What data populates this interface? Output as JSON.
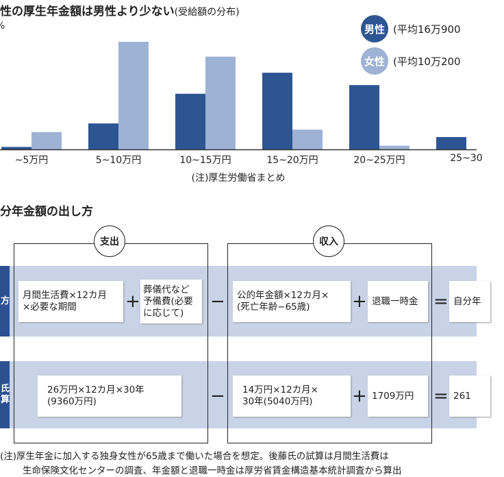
{
  "chart_data": {
    "type": "bar",
    "title": "性の厚生年金額は男性より少ない",
    "subtitle": "(受給額の分布)",
    "ylabel": "%",
    "categories": [
      "~5万円",
      "5~10万円",
      "10~15万円",
      "15~20万円",
      "20~25万円",
      "25~30"
    ],
    "series": [
      {
        "name": "男性",
        "note": "(平均16万900",
        "color": "#2d5592",
        "values": [
          1,
          10.5,
          22.5,
          31,
          26,
          5
        ]
      },
      {
        "name": "女性",
        "note": "(平均10万200",
        "color": "#9db2d4",
        "values": [
          7,
          43.5,
          37.5,
          8,
          1.5,
          null
        ]
      }
    ],
    "ylim": [
      0,
      46
    ],
    "grid": false,
    "legend": "top-right",
    "source": "(注)厚生労働省まとめ"
  },
  "diagram": {
    "title": "分年金額の出し方",
    "expense_label": "支出",
    "income_label": "収入",
    "rows": [
      {
        "side_label": "方",
        "expense_a": "月間生活費×12カ月\n×必要な期間",
        "plus1": "+",
        "expense_b": "葬儀代など\n予備費(必要\nに応じて)",
        "minus": "−",
        "income_a": "公的年金額×12カ月×\n(死亡年齢−65歳)",
        "plus2": "+",
        "income_b": "退職一時金",
        "equals": "=",
        "result": "自分年"
      },
      {
        "side_label": "氏\n算",
        "expense_a": "26万円×12カ月×30年\n(9360万円)",
        "minus": "−",
        "income_a": "14万円×12カ月×\n30年(5040万円)",
        "plus2": "+",
        "income_b": "1709万円",
        "equals": "=",
        "result": "261"
      }
    ],
    "footnote_1": "(注)厚生年金に加入する独身女性が65歳まで働いた場合を想定。後藤氏の試算は月間生活費は",
    "footnote_2": "生命保険文化センターの調査、年金額と退職一時金は厚労省賃金構造基本統計調査から算出"
  }
}
